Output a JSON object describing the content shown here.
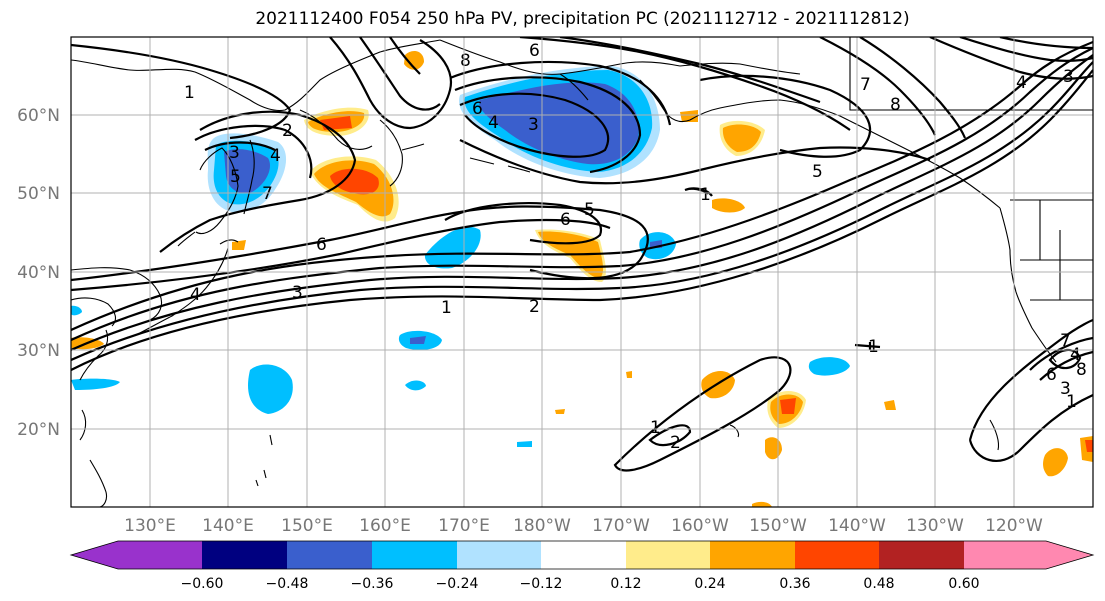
{
  "title": "2021112400 F054 250 hPa PV, precipitation PC (2021112712 - 2021112812)",
  "lat_labels": [
    "60°N",
    "50°N",
    "40°N",
    "30°N",
    "20°N"
  ],
  "lon_labels": [
    "130°E",
    "140°E",
    "150°E",
    "160°E",
    "170°E",
    "180°W",
    "170°W",
    "160°W",
    "150°W",
    "140°W",
    "130°W",
    "120°W"
  ],
  "colorbar": {
    "ticks": [
      "−0.60",
      "−0.48",
      "−0.36",
      "−0.24",
      "−0.12",
      "0.12",
      "0.24",
      "0.36",
      "0.48",
      "0.60"
    ],
    "colors": [
      "#9932CC",
      "#000080",
      "#3A5FCD",
      "#00BFFF",
      "#B0E2FF",
      "#FFFFFF",
      "#FFEC8B",
      "#FFA500",
      "#FF4500",
      "#B22222",
      "#FF88B0"
    ]
  },
  "contour_labels": [
    "1",
    "2",
    "3",
    "4",
    "5",
    "6",
    "7",
    "8",
    "6",
    "5",
    "6",
    "3",
    "4",
    "1",
    "2",
    "3",
    "4",
    "6",
    "4",
    "3",
    "7",
    "8",
    "5",
    "1",
    "2",
    "3",
    "4",
    "6",
    "8",
    "7",
    "1",
    "1",
    "1"
  ]
}
